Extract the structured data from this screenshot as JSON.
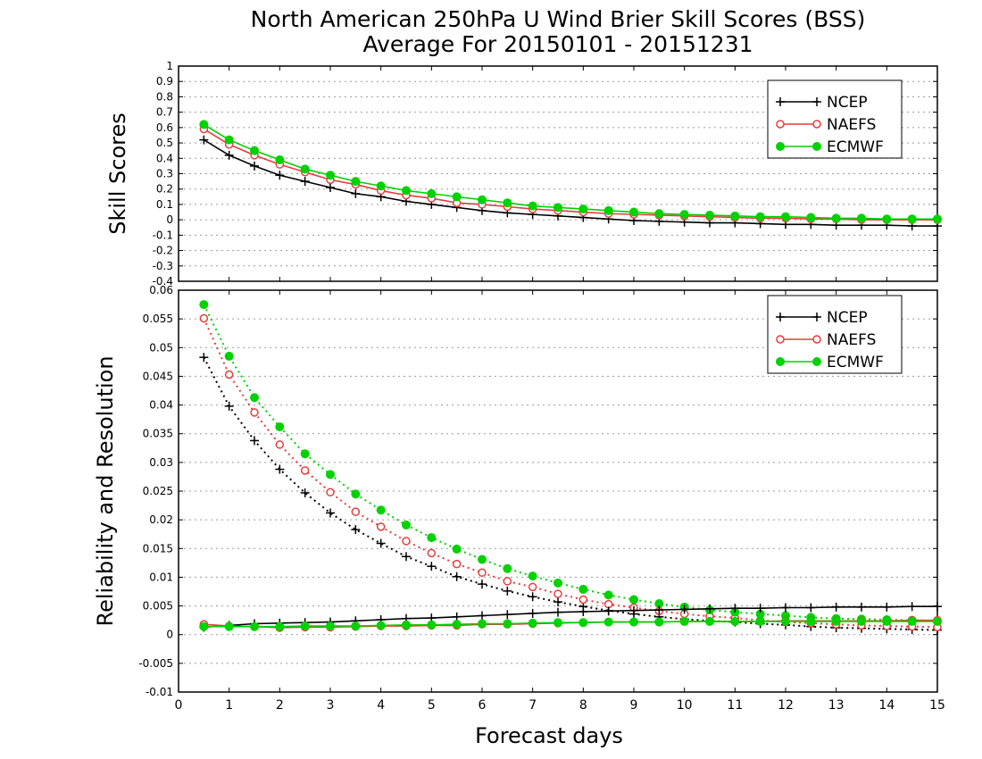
{
  "title_line1": "North American 250hPa U Wind Brier Skill Scores (BSS)",
  "title_line2": "Average For 20150101 - 20151231",
  "colors": {
    "NCEP": "#000000",
    "NAEFS": "#e83c3c",
    "ECMWF": "#00d200"
  },
  "chart_data": [
    {
      "type": "line",
      "ylabel": "Skill Scores",
      "xlim": [
        0,
        15
      ],
      "ylim": [
        -0.4,
        1
      ],
      "x_ticks": [
        0,
        1,
        2,
        3,
        4,
        5,
        6,
        7,
        8,
        9,
        10,
        11,
        12,
        13,
        14,
        15
      ],
      "y_ticks": [
        "1",
        "0.9",
        "0.8",
        "0.7",
        "0.6",
        "0.5",
        "0.4",
        "0.3",
        "0.2",
        "0.1",
        "0",
        "-0.1",
        "-0.2",
        "-0.3",
        "-0.4"
      ],
      "grid": true,
      "legend": "top-right",
      "x": [
        0.5,
        1,
        1.5,
        2,
        2.5,
        3,
        3.5,
        4,
        4.5,
        5,
        5.5,
        6,
        6.5,
        7,
        7.5,
        8,
        8.5,
        9,
        9.5,
        10,
        10.5,
        11,
        11.5,
        12,
        12.5,
        13,
        13.5,
        14,
        14.5,
        15
      ],
      "series": [
        {
          "name": "NCEP",
          "marker": "plus",
          "style": "solid",
          "values": [
            0.52,
            0.42,
            0.35,
            0.29,
            0.25,
            0.21,
            0.17,
            0.15,
            0.12,
            0.1,
            0.08,
            0.06,
            0.045,
            0.035,
            0.025,
            0.015,
            0.005,
            -0.005,
            -0.01,
            -0.015,
            -0.02,
            -0.02,
            -0.025,
            -0.03,
            -0.03,
            -0.035,
            -0.035,
            -0.035,
            -0.04,
            -0.04
          ]
        },
        {
          "name": "NAEFS",
          "marker": "open-circle",
          "style": "solid",
          "values": [
            0.59,
            0.49,
            0.42,
            0.36,
            0.31,
            0.26,
            0.23,
            0.19,
            0.16,
            0.14,
            0.11,
            0.1,
            0.085,
            0.07,
            0.06,
            0.05,
            0.04,
            0.035,
            0.03,
            0.025,
            0.02,
            0.015,
            0.01,
            0.01,
            0.005,
            0.005,
            0.0,
            0.0,
            0.0,
            0.0
          ]
        },
        {
          "name": "ECMWF",
          "marker": "filled-circle",
          "style": "solid",
          "values": [
            0.62,
            0.52,
            0.45,
            0.39,
            0.33,
            0.29,
            0.25,
            0.22,
            0.19,
            0.17,
            0.15,
            0.13,
            0.11,
            0.09,
            0.08,
            0.07,
            0.06,
            0.05,
            0.04,
            0.035,
            0.03,
            0.025,
            0.02,
            0.02,
            0.015,
            0.01,
            0.01,
            0.005,
            0.005,
            0.005
          ]
        }
      ]
    },
    {
      "type": "line",
      "ylabel": "Reliability and Resolution",
      "xlabel": "Forecast days",
      "xlim": [
        0,
        15
      ],
      "ylim": [
        -0.01,
        0.06
      ],
      "x_ticks": [
        0,
        1,
        2,
        3,
        4,
        5,
        6,
        7,
        8,
        9,
        10,
        11,
        12,
        13,
        14,
        15
      ],
      "y_ticks": [
        "0.06",
        "0.055",
        "0.05",
        "0.045",
        "0.04",
        "0.035",
        "0.03",
        "0.025",
        "0.02",
        "0.015",
        "0.01",
        "0.005",
        "0",
        "-0.005",
        "-0.01"
      ],
      "grid": true,
      "legend": "top-right",
      "x": [
        0.5,
        1,
        1.5,
        2,
        2.5,
        3,
        3.5,
        4,
        4.5,
        5,
        5.5,
        6,
        6.5,
        7,
        7.5,
        8,
        8.5,
        9,
        9.5,
        10,
        10.5,
        11,
        11.5,
        12,
        12.5,
        13,
        13.5,
        14,
        14.5,
        15
      ],
      "series": [
        {
          "name": "NCEP",
          "metric": "reliability",
          "marker": "plus",
          "style": "dotted",
          "values": [
            0.0483,
            0.0398,
            0.0338,
            0.0288,
            0.0247,
            0.0212,
            0.0183,
            0.0159,
            0.0136,
            0.0119,
            0.0101,
            0.0088,
            0.0076,
            0.0066,
            0.0057,
            0.0049,
            0.0042,
            0.0036,
            0.0031,
            0.0027,
            0.0024,
            0.0022,
            0.0019,
            0.0017,
            0.0014,
            0.0012,
            0.0011,
            0.001,
            0.0009,
            0.0008
          ]
        },
        {
          "name": "NAEFS",
          "metric": "reliability",
          "marker": "open-circle",
          "style": "dotted",
          "values": [
            0.0551,
            0.0453,
            0.0387,
            0.0331,
            0.0286,
            0.0248,
            0.0214,
            0.0188,
            0.0163,
            0.0142,
            0.0123,
            0.0108,
            0.0093,
            0.0083,
            0.0071,
            0.0061,
            0.0053,
            0.0047,
            0.0041,
            0.0036,
            0.0032,
            0.0029,
            0.0025,
            0.0022,
            0.002,
            0.0018,
            0.0016,
            0.0015,
            0.0014,
            0.0013
          ]
        },
        {
          "name": "ECMWF",
          "metric": "reliability",
          "marker": "filled-circle",
          "style": "dotted",
          "values": [
            0.0575,
            0.0485,
            0.0413,
            0.0362,
            0.0315,
            0.0279,
            0.0245,
            0.0217,
            0.0191,
            0.0169,
            0.0149,
            0.0131,
            0.0115,
            0.0102,
            0.009,
            0.0079,
            0.0069,
            0.0061,
            0.0054,
            0.0048,
            0.0043,
            0.0039,
            0.0036,
            0.0033,
            0.003,
            0.0028,
            0.0027,
            0.0026,
            0.0025,
            0.0024
          ]
        },
        {
          "name": "NCEP",
          "metric": "resolution",
          "marker": "plus",
          "style": "solid",
          "values": [
            0.0013,
            0.0016,
            0.0019,
            0.002,
            0.0021,
            0.0022,
            0.0024,
            0.0026,
            0.0028,
            0.0029,
            0.0031,
            0.0033,
            0.0035,
            0.0037,
            0.0039,
            0.004,
            0.0041,
            0.0042,
            0.0043,
            0.0044,
            0.0045,
            0.0046,
            0.0046,
            0.0047,
            0.0047,
            0.0048,
            0.0048,
            0.0048,
            0.0049,
            0.0049
          ]
        },
        {
          "name": "NAEFS",
          "metric": "resolution",
          "marker": "open-circle",
          "style": "solid",
          "values": [
            0.0018,
            0.0015,
            0.0014,
            0.0012,
            0.0013,
            0.0013,
            0.0014,
            0.0015,
            0.0015,
            0.0016,
            0.0016,
            0.0018,
            0.0018,
            0.0019,
            0.002,
            0.0021,
            0.0022,
            0.0022,
            0.0022,
            0.0023,
            0.0023,
            0.0023,
            0.0023,
            0.0024,
            0.0024,
            0.0024,
            0.0024,
            0.0024,
            0.0025,
            0.0025
          ]
        },
        {
          "name": "ECMWF",
          "metric": "resolution",
          "marker": "filled-circle",
          "style": "solid",
          "values": [
            0.0014,
            0.0014,
            0.0014,
            0.0014,
            0.0015,
            0.0015,
            0.0015,
            0.0016,
            0.0017,
            0.0017,
            0.0018,
            0.0019,
            0.0019,
            0.002,
            0.0021,
            0.0021,
            0.0022,
            0.0022,
            0.0022,
            0.0023,
            0.0023,
            0.0023,
            0.0023,
            0.0023,
            0.0023,
            0.0023,
            0.0023,
            0.0023,
            0.0023,
            0.0023
          ]
        }
      ]
    }
  ]
}
